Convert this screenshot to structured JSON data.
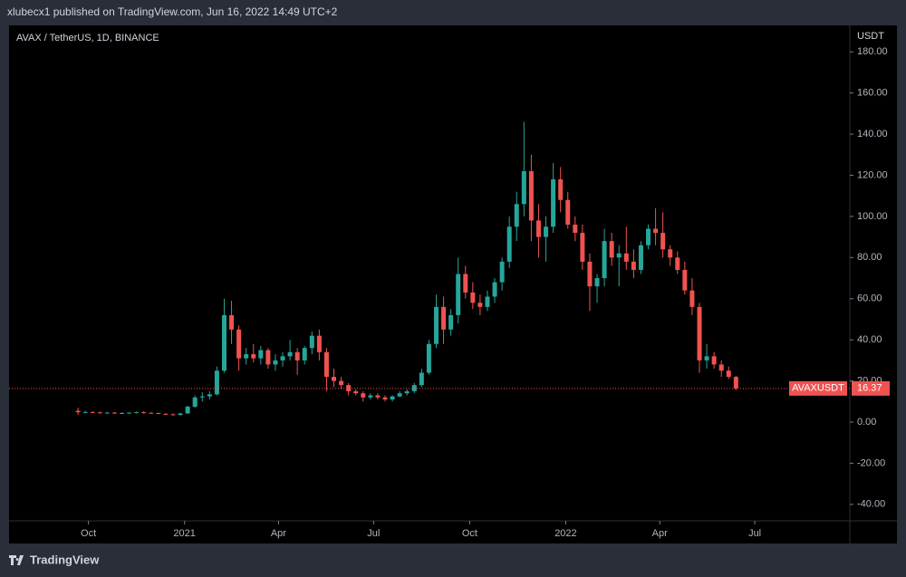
{
  "header": {
    "text": "xlubecx1 published on TradingView.com, Jun 16, 2022 14:49 UTC+2"
  },
  "footer": {
    "brand": "TradingView"
  },
  "chart_data": {
    "type": "candlestick",
    "title": "AVAX / TetherUS, 1D, BINANCE",
    "y_axis_label": "USDT",
    "up_color": "#26a69a",
    "down_color": "#ef5350",
    "x": [
      "2020-09-21",
      "2020-09-28",
      "2020-10-05",
      "2020-10-12",
      "2020-10-19",
      "2020-10-26",
      "2020-11-02",
      "2020-11-09",
      "2020-11-16",
      "2020-11-23",
      "2020-11-30",
      "2020-12-07",
      "2020-12-14",
      "2020-12-21",
      "2020-12-28",
      "2021-01-04",
      "2021-01-11",
      "2021-01-18",
      "2021-01-25",
      "2021-02-01",
      "2021-02-08",
      "2021-02-15",
      "2021-02-22",
      "2021-03-01",
      "2021-03-08",
      "2021-03-15",
      "2021-03-22",
      "2021-03-29",
      "2021-04-05",
      "2021-04-12",
      "2021-04-19",
      "2021-04-26",
      "2021-05-03",
      "2021-05-10",
      "2021-05-17",
      "2021-05-24",
      "2021-05-31",
      "2021-06-07",
      "2021-06-14",
      "2021-06-21",
      "2021-06-28",
      "2021-07-05",
      "2021-07-12",
      "2021-07-19",
      "2021-07-26",
      "2021-08-02",
      "2021-08-09",
      "2021-08-16",
      "2021-08-23",
      "2021-08-30",
      "2021-09-06",
      "2021-09-13",
      "2021-09-20",
      "2021-09-27",
      "2021-10-04",
      "2021-10-11",
      "2021-10-18",
      "2021-10-25",
      "2021-11-01",
      "2021-11-08",
      "2021-11-15",
      "2021-11-22",
      "2021-11-29",
      "2021-12-06",
      "2021-12-13",
      "2021-12-20",
      "2021-12-27",
      "2022-01-03",
      "2022-01-10",
      "2022-01-17",
      "2022-01-24",
      "2022-01-31",
      "2022-02-07",
      "2022-02-14",
      "2022-02-21",
      "2022-02-28",
      "2022-03-07",
      "2022-03-14",
      "2022-03-21",
      "2022-03-28",
      "2022-04-04",
      "2022-04-11",
      "2022-04-18",
      "2022-04-25",
      "2022-05-02",
      "2022-05-09",
      "2022-05-16",
      "2022-05-23",
      "2022-05-30",
      "2022-06-06",
      "2022-06-13"
    ],
    "open": [
      5.5,
      4.8,
      4.9,
      4.7,
      4.5,
      4.6,
      4.3,
      4.4,
      4.6,
      4.8,
      4.5,
      4.4,
      4.0,
      3.8,
      3.5,
      4.2,
      7.5,
      12,
      12.5,
      13.5,
      25,
      52,
      45,
      31,
      33,
      31,
      35,
      28,
      30,
      32,
      34,
      30,
      36,
      42,
      34,
      22,
      20,
      18,
      15,
      14,
      12,
      13,
      12,
      11,
      12.5,
      14,
      15,
      18,
      24,
      38,
      56,
      45,
      52,
      72,
      63,
      58,
      56,
      61,
      68,
      78,
      95,
      106,
      122,
      98,
      90,
      95,
      118,
      108,
      96,
      92,
      78,
      66,
      70,
      88,
      80,
      82,
      78,
      74,
      86,
      94,
      92,
      84,
      80,
      74,
      64,
      56,
      30,
      32,
      28,
      25,
      22
    ],
    "high": [
      7,
      5.5,
      5.3,
      5.2,
      5,
      4.9,
      4.8,
      4.9,
      5.1,
      5.3,
      4.9,
      4.7,
      4.4,
      4.2,
      4.5,
      8,
      13,
      14.5,
      15,
      27,
      60,
      59,
      47,
      36,
      38,
      37,
      36,
      33,
      34,
      40,
      36,
      37,
      44,
      45,
      36,
      26,
      22,
      19,
      16,
      15,
      14,
      14,
      13,
      13,
      15,
      16,
      19,
      26,
      40,
      62,
      61,
      55,
      80,
      76,
      68,
      62,
      64,
      70,
      80,
      100,
      112,
      146,
      130,
      106,
      100,
      126,
      124,
      112,
      100,
      96,
      82,
      72,
      94,
      92,
      86,
      95,
      84,
      88,
      96,
      104,
      102,
      86,
      83,
      78,
      70,
      58,
      38,
      34,
      30,
      27,
      22.5
    ],
    "low": [
      3.5,
      4.4,
      4.5,
      4.3,
      4.2,
      4.0,
      3.9,
      4.1,
      4.2,
      4.1,
      4.2,
      3.9,
      3.5,
      3.2,
      3.2,
      4,
      7,
      10,
      11,
      13,
      24,
      38,
      25,
      28,
      29,
      28,
      26,
      25,
      27,
      30,
      23,
      28,
      33,
      30,
      15,
      17,
      16,
      13,
      13,
      10,
      11,
      11,
      10,
      10,
      12,
      13,
      14,
      17,
      23,
      36,
      38,
      42,
      48,
      60,
      55,
      52,
      54,
      58,
      64,
      75,
      88,
      100,
      88,
      80,
      78,
      92,
      102,
      94,
      88,
      74,
      54,
      58,
      66,
      76,
      66,
      74,
      70,
      72,
      84,
      86,
      80,
      76,
      72,
      62,
      52,
      24,
      26,
      26,
      22,
      21,
      15.5
    ],
    "close": [
      4.8,
      4.9,
      4.7,
      4.5,
      4.6,
      4.3,
      4.4,
      4.6,
      4.8,
      4.5,
      4.4,
      4.0,
      3.8,
      3.5,
      4.2,
      7.5,
      12,
      12.5,
      13.5,
      25,
      52,
      45,
      31,
      33,
      31,
      35,
      28,
      30,
      32,
      34,
      30,
      36,
      42,
      34,
      22,
      20,
      18,
      15,
      14,
      12,
      13,
      12,
      11,
      12.5,
      14,
      15,
      18,
      24,
      38,
      56,
      45,
      52,
      72,
      63,
      58,
      56,
      61,
      68,
      78,
      95,
      106,
      122,
      98,
      90,
      95,
      118,
      108,
      96,
      92,
      78,
      66,
      70,
      88,
      80,
      82,
      78,
      74,
      86,
      94,
      92,
      84,
      80,
      74,
      64,
      56,
      30,
      32,
      28,
      25,
      22,
      16.37
    ],
    "xlim": [
      "2020-07-17",
      "2022-09-30"
    ],
    "xticks": [
      {
        "value": "2020-10-01",
        "label": "Oct"
      },
      {
        "value": "2021-01-01",
        "label": "2021"
      },
      {
        "value": "2021-04-01",
        "label": "Apr"
      },
      {
        "value": "2021-07-01",
        "label": "Jul"
      },
      {
        "value": "2021-10-01",
        "label": "Oct"
      },
      {
        "value": "2022-01-01",
        "label": "2022"
      },
      {
        "value": "2022-04-01",
        "label": "Apr"
      },
      {
        "value": "2022-07-01",
        "label": "Jul"
      }
    ],
    "ylim": [
      -48,
      192
    ],
    "yticks": [
      {
        "value": -40,
        "label": "-40.00"
      },
      {
        "value": -20,
        "label": "-20.00"
      },
      {
        "value": 0,
        "label": "0.00"
      },
      {
        "value": 20,
        "label": "20.00"
      },
      {
        "value": 40,
        "label": "40.00"
      },
      {
        "value": 60,
        "label": "60.00"
      },
      {
        "value": 80,
        "label": "80.00"
      },
      {
        "value": 100,
        "label": "100.00"
      },
      {
        "value": 120,
        "label": "120.00"
      },
      {
        "value": 140,
        "label": "140.00"
      },
      {
        "value": 160,
        "label": "160.00"
      },
      {
        "value": 180,
        "label": "180.00"
      }
    ],
    "last_price": {
      "name": "AVAXUSDT",
      "value": 16.37
    }
  }
}
